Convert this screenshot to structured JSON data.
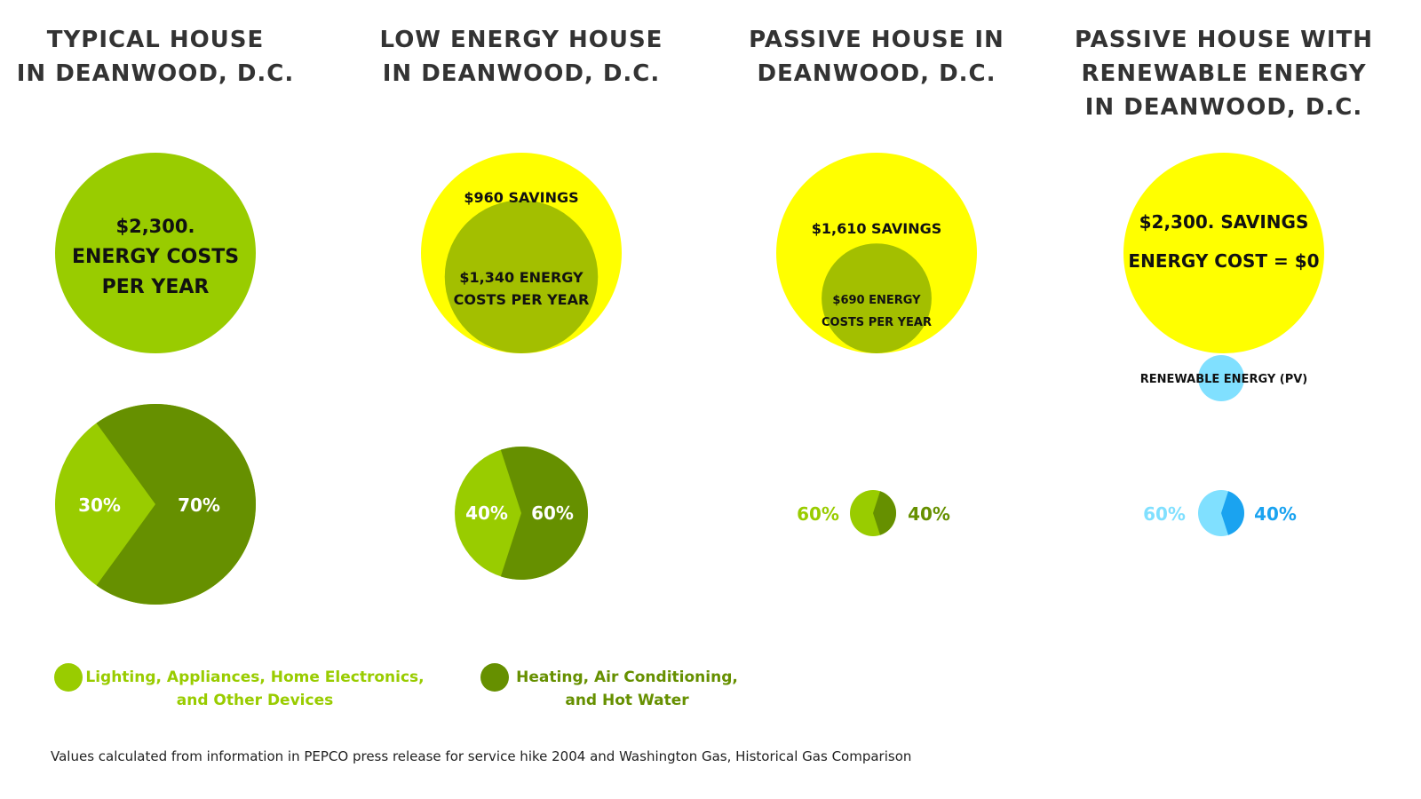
{
  "colors": {
    "light_green": "#99CC00",
    "dark_green": "#669000",
    "mid_green": "#A3BF00",
    "yellow": "#FFFF00",
    "light_blue": "#80E0FF",
    "blue": "#1AA3F0",
    "text_dark": "#333333"
  },
  "panels": [
    {
      "title_lines": [
        "TYPICAL HOUSE",
        "IN DEANWOOD, D.C."
      ],
      "total_label_lines": [
        "$2,300.",
        "ENERGY COSTS",
        "PER YEAR"
      ],
      "total_energy_cost": 2300,
      "savings": 0,
      "pie_left_label": "30%",
      "pie_right_label": "70%"
    },
    {
      "title_lines": [
        "LOW ENERGY HOUSE",
        "IN DEANWOOD, D.C."
      ],
      "savings_label": "$960 SAVINGS",
      "cost_label_lines": [
        "$1,340 ENERGY",
        "COSTS PER YEAR"
      ],
      "total_energy_cost": 1340,
      "savings": 960,
      "pie_left_label": "40%",
      "pie_right_label": "60%"
    },
    {
      "title_lines": [
        "PASSIVE HOUSE IN",
        "DEANWOOD, D.C."
      ],
      "savings_label": "$1,610 SAVINGS",
      "cost_label_lines": [
        "$690 ENERGY",
        "COSTS PER YEAR"
      ],
      "total_energy_cost": 690,
      "savings": 1610,
      "pie_left_label": "60%",
      "pie_right_label": "40%"
    },
    {
      "title_lines": [
        "PASSIVE HOUSE WITH",
        "RENEWABLE ENERGY",
        "IN DEANWOOD, D.C."
      ],
      "savings_label": "$2,300. SAVINGS",
      "cost_label": "ENERGY COST = $0",
      "renewable_label": "RENEWABLE ENERGY (PV)",
      "total_energy_cost": 0,
      "savings": 2300,
      "pie_left_label": "60%",
      "pie_right_label": "40%"
    }
  ],
  "chart_data": {
    "type": "pie",
    "title": "",
    "categories": [
      "Lighting, Appliances, Home Electronics, and Other Devices",
      "Heating, Air Conditioning, and Hot Water"
    ],
    "series": [
      {
        "name": "TYPICAL HOUSE IN DEANWOOD, D.C.",
        "values": [
          30,
          70
        ],
        "total": 2300,
        "savings": 0
      },
      {
        "name": "LOW ENERGY HOUSE IN DEANWOOD, D.C.",
        "values": [
          40,
          60
        ],
        "total": 1340,
        "savings": 960
      },
      {
        "name": "PASSIVE HOUSE IN DEANWOOD, D.C.",
        "values": [
          60,
          40
        ],
        "total": 690,
        "savings": 1610
      },
      {
        "name": "PASSIVE HOUSE WITH RENEWABLE ENERGY IN DEANWOOD, D.C.",
        "values": [
          60,
          40
        ],
        "total": 0,
        "savings": 2300
      }
    ],
    "units": "percent of energy cost",
    "legend_position": "bottom-left"
  },
  "legend": {
    "items": [
      {
        "lines": [
          "Lighting, Appliances, Home Electronics,",
          "and Other Devices"
        ],
        "color_key": "light_green"
      },
      {
        "lines": [
          "Heating, Air Conditioning,",
          "and Hot Water"
        ],
        "color_key": "dark_green"
      }
    ]
  },
  "source_note": "Values calculated from information in PEPCO press release for service hike 2004 and Washington Gas, Historical Gas Comparison"
}
